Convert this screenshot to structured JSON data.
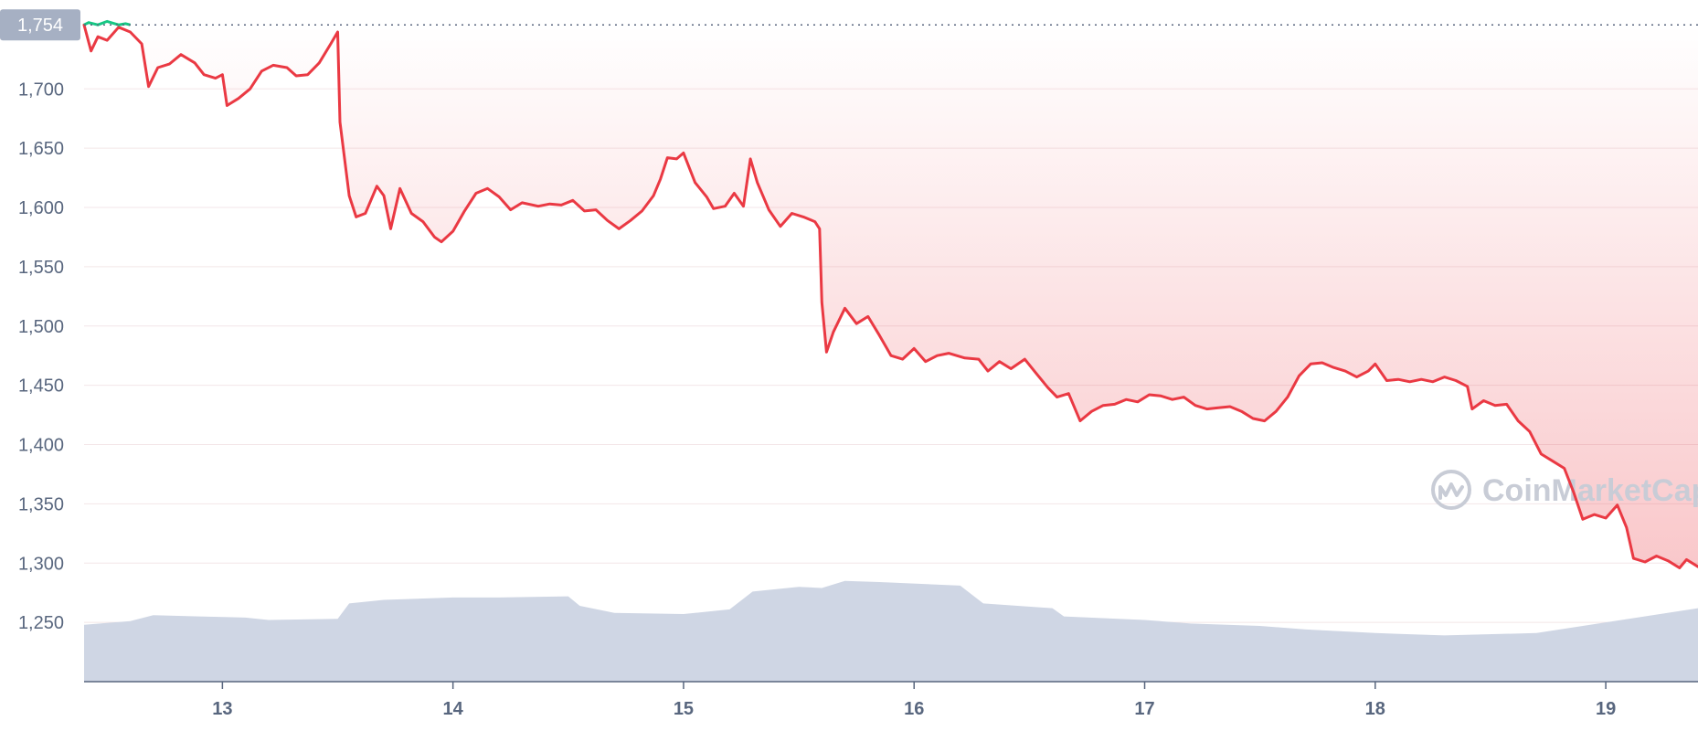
{
  "chart_data": {
    "type": "line",
    "title": "",
    "xlabel": "",
    "ylabel": "",
    "x_range_days": [
      12.4,
      19.4
    ],
    "ylim": [
      1200,
      1775
    ],
    "y_ticks": [
      "1,250",
      "1,300",
      "1,350",
      "1,400",
      "1,450",
      "1,500",
      "1,550",
      "1,600",
      "1,650",
      "1,700"
    ],
    "y_tick_values": [
      1250,
      1300,
      1350,
      1400,
      1450,
      1500,
      1550,
      1600,
      1650,
      1700
    ],
    "x_ticks": [
      "13",
      "14",
      "15",
      "16",
      "17",
      "18",
      "19"
    ],
    "x_tick_values": [
      13,
      14,
      15,
      16,
      17,
      18,
      19
    ],
    "reference_price": 1754,
    "reference_label": "1,754",
    "watermark": "CoinMarketCap",
    "grid": true,
    "colors": {
      "price_line": "#ea3943",
      "above_reference": "#16c784",
      "fill_top": "#ea3943",
      "volume": "#cfd6e4",
      "label_bg": "#a6b0c3",
      "grid": "#f3e6e8"
    },
    "series": [
      {
        "values": [
          [
            12.4,
            1754
          ],
          [
            12.43,
            1732
          ],
          [
            12.46,
            1744
          ],
          [
            12.5,
            1741
          ],
          [
            12.55,
            1752
          ],
          [
            12.6,
            1748
          ],
          [
            12.65,
            1738
          ],
          [
            12.68,
            1702
          ],
          [
            12.72,
            1718
          ],
          [
            12.77,
            1721
          ],
          [
            12.82,
            1729
          ],
          [
            12.88,
            1722
          ],
          [
            12.92,
            1712
          ],
          [
            12.97,
            1709
          ],
          [
            13.0,
            1712
          ],
          [
            13.02,
            1686
          ],
          [
            13.07,
            1692
          ],
          [
            13.12,
            1700
          ],
          [
            13.17,
            1715
          ],
          [
            13.22,
            1720
          ],
          [
            13.28,
            1718
          ],
          [
            13.32,
            1711
          ],
          [
            13.37,
            1712
          ],
          [
            13.42,
            1722
          ],
          [
            13.47,
            1738
          ],
          [
            13.5,
            1748
          ],
          [
            13.51,
            1672
          ],
          [
            13.55,
            1610
          ],
          [
            13.58,
            1592
          ],
          [
            13.62,
            1595
          ],
          [
            13.67,
            1618
          ],
          [
            13.7,
            1610
          ],
          [
            13.73,
            1582
          ],
          [
            13.77,
            1616
          ],
          [
            13.82,
            1595
          ],
          [
            13.87,
            1588
          ],
          [
            13.92,
            1575
          ],
          [
            13.95,
            1571
          ],
          [
            14.0,
            1580
          ],
          [
            14.05,
            1597
          ],
          [
            14.1,
            1612
          ],
          [
            14.15,
            1616
          ],
          [
            14.2,
            1609
          ],
          [
            14.25,
            1598
          ],
          [
            14.3,
            1604
          ],
          [
            14.37,
            1601
          ],
          [
            14.42,
            1603
          ],
          [
            14.47,
            1602
          ],
          [
            14.52,
            1606
          ],
          [
            14.57,
            1597
          ],
          [
            14.62,
            1598
          ],
          [
            14.67,
            1589
          ],
          [
            14.72,
            1582
          ],
          [
            14.77,
            1589
          ],
          [
            14.82,
            1597
          ],
          [
            14.87,
            1610
          ],
          [
            14.9,
            1624
          ],
          [
            14.93,
            1642
          ],
          [
            14.97,
            1641
          ],
          [
            15.0,
            1646
          ],
          [
            15.05,
            1621
          ],
          [
            15.1,
            1609
          ],
          [
            15.13,
            1599
          ],
          [
            15.18,
            1601
          ],
          [
            15.22,
            1612
          ],
          [
            15.26,
            1601
          ],
          [
            15.29,
            1641
          ],
          [
            15.32,
            1621
          ],
          [
            15.37,
            1598
          ],
          [
            15.42,
            1584
          ],
          [
            15.47,
            1595
          ],
          [
            15.52,
            1592
          ],
          [
            15.57,
            1588
          ],
          [
            15.59,
            1582
          ],
          [
            15.6,
            1520
          ],
          [
            15.62,
            1478
          ],
          [
            15.65,
            1495
          ],
          [
            15.7,
            1515
          ],
          [
            15.75,
            1502
          ],
          [
            15.8,
            1508
          ],
          [
            15.85,
            1492
          ],
          [
            15.9,
            1475
          ],
          [
            15.95,
            1472
          ],
          [
            16.0,
            1481
          ],
          [
            16.05,
            1470
          ],
          [
            16.1,
            1475
          ],
          [
            16.15,
            1477
          ],
          [
            16.22,
            1473
          ],
          [
            16.28,
            1472
          ],
          [
            16.32,
            1462
          ],
          [
            16.37,
            1470
          ],
          [
            16.42,
            1464
          ],
          [
            16.48,
            1472
          ],
          [
            16.53,
            1460
          ],
          [
            16.58,
            1448
          ],
          [
            16.62,
            1440
          ],
          [
            16.67,
            1443
          ],
          [
            16.72,
            1420
          ],
          [
            16.77,
            1428
          ],
          [
            16.82,
            1433
          ],
          [
            16.87,
            1434
          ],
          [
            16.92,
            1438
          ],
          [
            16.97,
            1436
          ],
          [
            17.02,
            1442
          ],
          [
            17.07,
            1441
          ],
          [
            17.12,
            1438
          ],
          [
            17.17,
            1440
          ],
          [
            17.22,
            1433
          ],
          [
            17.27,
            1430
          ],
          [
            17.32,
            1431
          ],
          [
            17.37,
            1432
          ],
          [
            17.42,
            1428
          ],
          [
            17.47,
            1422
          ],
          [
            17.52,
            1420
          ],
          [
            17.57,
            1428
          ],
          [
            17.62,
            1440
          ],
          [
            17.67,
            1458
          ],
          [
            17.72,
            1468
          ],
          [
            17.77,
            1469
          ],
          [
            17.82,
            1465
          ],
          [
            17.87,
            1462
          ],
          [
            17.92,
            1457
          ],
          [
            17.97,
            1462
          ],
          [
            18.0,
            1468
          ],
          [
            18.05,
            1454
          ],
          [
            18.1,
            1455
          ],
          [
            18.15,
            1453
          ],
          [
            18.2,
            1455
          ],
          [
            18.25,
            1453
          ],
          [
            18.3,
            1457
          ],
          [
            18.35,
            1454
          ],
          [
            18.4,
            1449
          ],
          [
            18.42,
            1430
          ],
          [
            18.47,
            1437
          ],
          [
            18.52,
            1433
          ],
          [
            18.57,
            1434
          ],
          [
            18.62,
            1420
          ],
          [
            18.67,
            1411
          ],
          [
            18.72,
            1392
          ],
          [
            18.77,
            1386
          ],
          [
            18.82,
            1380
          ],
          [
            18.86,
            1360
          ],
          [
            18.9,
            1337
          ],
          [
            18.95,
            1341
          ],
          [
            19.0,
            1338
          ],
          [
            19.05,
            1349
          ],
          [
            19.09,
            1330
          ],
          [
            19.12,
            1304
          ],
          [
            19.17,
            1301
          ],
          [
            19.22,
            1306
          ],
          [
            19.27,
            1302
          ],
          [
            19.32,
            1296
          ],
          [
            19.35,
            1303
          ],
          [
            19.4,
            1297
          ]
        ]
      },
      {
        "type": "area",
        "values": [
          [
            12.4,
            1248
          ],
          [
            12.6,
            1251
          ],
          [
            12.7,
            1256
          ],
          [
            12.9,
            1255
          ],
          [
            13.1,
            1254
          ],
          [
            13.2,
            1252
          ],
          [
            13.5,
            1253
          ],
          [
            13.55,
            1266
          ],
          [
            13.7,
            1269
          ],
          [
            14.0,
            1271
          ],
          [
            14.2,
            1271
          ],
          [
            14.5,
            1272
          ],
          [
            14.55,
            1264
          ],
          [
            14.7,
            1258
          ],
          [
            15.0,
            1257
          ],
          [
            15.2,
            1261
          ],
          [
            15.3,
            1276
          ],
          [
            15.5,
            1280
          ],
          [
            15.6,
            1279
          ],
          [
            15.7,
            1285
          ],
          [
            15.85,
            1284
          ],
          [
            16.2,
            1281
          ],
          [
            16.3,
            1266
          ],
          [
            16.6,
            1262
          ],
          [
            16.65,
            1255
          ],
          [
            17.0,
            1252
          ],
          [
            17.2,
            1249
          ],
          [
            17.5,
            1247
          ],
          [
            17.7,
            1244
          ],
          [
            18.0,
            1241
          ],
          [
            18.3,
            1239
          ],
          [
            18.7,
            1241
          ],
          [
            18.9,
            1247
          ],
          [
            19.1,
            1253
          ],
          [
            19.4,
            1262
          ]
        ]
      }
    ]
  }
}
